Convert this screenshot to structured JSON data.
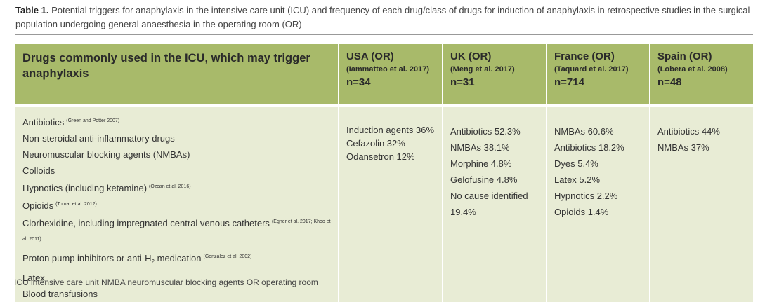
{
  "caption": {
    "label": "Table 1.",
    "text": "Potential triggers for anaphylaxis in the intensive care unit (ICU) and frequency of each drug/class of drugs for induction of anaphylaxis in retrospective studies in the surgical population undergoing general anaesthesia in the operating room (OR)"
  },
  "table": {
    "header": [
      {
        "title": "Drugs commonly used in the ICU, which may trigger anaphylaxis"
      },
      {
        "title": "USA (OR)",
        "citation": "(Iammatteo et al. 2017)",
        "n": "n=34"
      },
      {
        "title": "UK (OR)",
        "citation": "(Meng et al. 2017)",
        "n": "n=31"
      },
      {
        "title": "France (OR)",
        "citation": "(Taquard et al. 2017)",
        "n": "n=714"
      },
      {
        "title": "Spain (OR)",
        "citation": "(Lobera et al. 2008)",
        "n": "n=48"
      }
    ],
    "drugs": [
      {
        "text": "Antibiotics",
        "citation": "(Green and Potter 2007)"
      },
      {
        "text": "Non-steroidal anti-inflammatory drugs"
      },
      {
        "text": "Neuromuscular blocking agents (NMBAs)"
      },
      {
        "text": "Colloids"
      },
      {
        "text": "Hypnotics (including ketamine)",
        "citation": "(Ozcan et al. 2016)"
      },
      {
        "text": "Opioids",
        "citation": "(Tomar et al. 2012)"
      },
      {
        "text": "Clorhexidine, including impregnated central venous catheters",
        "citation": "(Egner et al. 2017; Khoo et al. 2011)"
      },
      {
        "text": "Proton pump inhibitors or anti-H",
        "sub": "2",
        "text_after": "medication",
        "citation": "(Gonzalez et al. 2002)"
      },
      {
        "text": "Latex"
      },
      {
        "text": "Blood transfusions"
      }
    ],
    "studies": [
      [
        "Induction agents 36%",
        "Cefazolin 32%",
        "Odansetron 12%"
      ],
      [
        "Antibiotics 52.3%",
        "NMBAs 38.1%",
        "Morphine 4.8%",
        "Gelofusine 4.8%",
        "No cause identified 19.4%"
      ],
      [
        "NMBAs 60.6%",
        "Antibiotics 18.2%",
        "Dyes 5.4%",
        "Latex 5.2%",
        "Hypnotics 2.2%",
        "Opioids 1.4%"
      ],
      [
        "Antibiotics 44%",
        "NMBAs 37%"
      ]
    ]
  },
  "footnote": "ICU intensive care unit NMBA neuromuscular blocking agents OR operating room"
}
